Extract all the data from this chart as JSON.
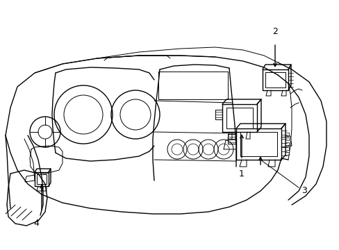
{
  "background_color": "#ffffff",
  "line_color": "#000000",
  "fig_width": 4.89,
  "fig_height": 3.6,
  "dpi": 100,
  "lw_main": 1.0,
  "lw_thin": 0.7,
  "lw_detail": 0.5
}
